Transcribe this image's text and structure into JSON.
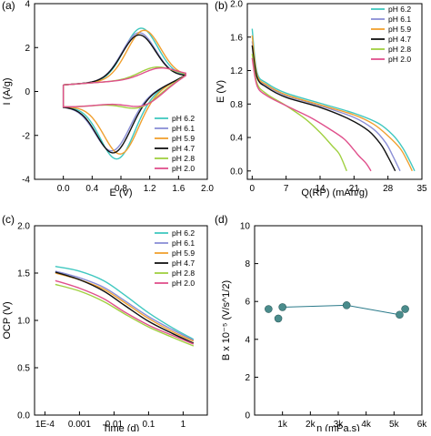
{
  "chart_data": [
    {
      "panel": "(a)",
      "type": "line",
      "xlabel": "E (V)",
      "ylabel": "I (A/g)",
      "xlim": [
        -0.4,
        2.0
      ],
      "ylim": [
        -4,
        4
      ],
      "xticks": [
        "0.0",
        "0.4",
        "0.8",
        "1.2",
        "1.6",
        "2.0"
      ],
      "yticks": [
        "-4",
        "-2",
        "0",
        "2",
        "4"
      ],
      "legend_position": "bottom-right",
      "series": [
        {
          "name": "pH 6.2",
          "color": "#40c8c0",
          "peak_ox": [
            1.08,
            2.55
          ],
          "peak_red": [
            0.75,
            -2.75
          ]
        },
        {
          "name": "pH 6.1",
          "color": "#8a8ed6",
          "peak_ox": [
            1.05,
            2.35
          ],
          "peak_red": [
            0.68,
            -2.35
          ]
        },
        {
          "name": "pH 5.9",
          "color": "#f0a030",
          "peak_ox": [
            1.12,
            2.45
          ],
          "peak_red": [
            0.8,
            -2.55
          ]
        },
        {
          "name": "pH 4.7",
          "color": "#111111",
          "peak_ox": [
            1.05,
            2.25
          ],
          "peak_red": [
            0.7,
            -2.45
          ]
        },
        {
          "name": "pH 2.8",
          "color": "#a0d040",
          "peak_ox": [
            1.3,
            0.75
          ],
          "peak_red": [
            1.05,
            -0.6
          ]
        },
        {
          "name": "pH 2.0",
          "color": "#e0508c",
          "peak_ox": [
            1.35,
            0.7
          ],
          "peak_red": [
            1.1,
            -0.55
          ]
        }
      ]
    },
    {
      "panel": "(b)",
      "type": "line",
      "xlabel": "Q(RP) (mAh/g)",
      "ylabel": "E (V)",
      "xlim": [
        -1,
        35
      ],
      "ylim": [
        -0.1,
        2.0
      ],
      "xticks": [
        "0",
        "7",
        "14",
        "21",
        "28",
        "35"
      ],
      "yticks": [
        "0.0",
        "0.4",
        "0.8",
        "1.2",
        "1.6",
        "2.0"
      ],
      "legend_position": "top-right",
      "series": [
        {
          "name": "pH 6.2",
          "color": "#40c8c0",
          "capacity": 33.5,
          "x": [
            0,
            1,
            3,
            7,
            14,
            21,
            26,
            29,
            31,
            32.5,
            33.5
          ],
          "y": [
            1.7,
            1.18,
            1.05,
            0.93,
            0.81,
            0.69,
            0.57,
            0.43,
            0.28,
            0.12,
            0.0
          ]
        },
        {
          "name": "pH 6.1",
          "color": "#8a8ed6",
          "capacity": 30.5,
          "x": [
            0,
            1,
            3,
            7,
            14,
            21,
            25,
            27.5,
            29,
            30.5
          ],
          "y": [
            1.55,
            1.14,
            1.02,
            0.9,
            0.78,
            0.64,
            0.5,
            0.34,
            0.18,
            0.0
          ]
        },
        {
          "name": "pH 5.9",
          "color": "#f0a030",
          "capacity": 33.0,
          "x": [
            0,
            1,
            3,
            7,
            14,
            21,
            25,
            28,
            30.5,
            32,
            33
          ],
          "y": [
            1.62,
            1.15,
            1.03,
            0.91,
            0.79,
            0.67,
            0.56,
            0.42,
            0.27,
            0.12,
            0.0
          ]
        },
        {
          "name": "pH 4.7",
          "color": "#111111",
          "capacity": 29.5,
          "x": [
            0,
            1,
            3,
            7,
            14,
            20,
            24,
            26.5,
            28,
            29.5
          ],
          "y": [
            1.5,
            1.12,
            1.0,
            0.88,
            0.76,
            0.62,
            0.48,
            0.32,
            0.17,
            0.0
          ]
        },
        {
          "name": "pH 2.8",
          "color": "#a0d040",
          "capacity": 19.5,
          "x": [
            0,
            1,
            3,
            7,
            11,
            14,
            16.5,
            18,
            19.5
          ],
          "y": [
            1.4,
            1.05,
            0.92,
            0.78,
            0.62,
            0.46,
            0.3,
            0.2,
            0.0
          ]
        },
        {
          "name": "pH 2.0",
          "color": "#e0508c",
          "capacity": 24.5,
          "x": [
            0,
            1,
            3,
            7,
            12,
            16,
            19,
            21,
            22,
            23.5,
            24.5
          ],
          "y": [
            1.35,
            1.02,
            0.9,
            0.78,
            0.64,
            0.5,
            0.38,
            0.25,
            0.18,
            0.09,
            0.0
          ]
        }
      ]
    },
    {
      "panel": "(c)",
      "type": "line",
      "xlabel": "Time (d)",
      "ylabel": "OCP (V)",
      "xscale": "log",
      "xlim_log10": [
        -4.3,
        0.7
      ],
      "ylim": [
        0.0,
        2.0
      ],
      "xticks": [
        "1E-4",
        "0.001",
        "0.01",
        "0.1",
        "1"
      ],
      "xtick_values": [
        0.0001,
        0.001,
        0.01,
        0.1,
        1
      ],
      "yticks": [
        "0.0",
        "0.5",
        "1.0",
        "1.5",
        "2.0"
      ],
      "legend_position": "top-right",
      "series": [
        {
          "name": "pH 6.2",
          "color": "#40c8c0",
          "x": [
            0.0002,
            0.001,
            0.005,
            0.02,
            0.1,
            0.5,
            2
          ],
          "y": [
            1.57,
            1.52,
            1.42,
            1.27,
            1.08,
            0.92,
            0.8
          ]
        },
        {
          "name": "pH 6.1",
          "color": "#8a8ed6",
          "x": [
            0.0002,
            0.001,
            0.005,
            0.02,
            0.1,
            0.5,
            2
          ],
          "y": [
            1.52,
            1.45,
            1.35,
            1.21,
            1.04,
            0.9,
            0.79
          ]
        },
        {
          "name": "pH 5.9",
          "color": "#f0a030",
          "x": [
            0.0002,
            0.001,
            0.005,
            0.02,
            0.1,
            0.5,
            2
          ],
          "y": [
            1.5,
            1.43,
            1.33,
            1.19,
            1.02,
            0.88,
            0.78
          ]
        },
        {
          "name": "pH 4.7",
          "color": "#111111",
          "x": [
            0.0002,
            0.001,
            0.005,
            0.02,
            0.1,
            0.5,
            2
          ],
          "y": [
            1.51,
            1.43,
            1.31,
            1.16,
            0.99,
            0.86,
            0.76
          ]
        },
        {
          "name": "pH 2.8",
          "color": "#a0d040",
          "x": [
            0.0002,
            0.001,
            0.005,
            0.02,
            0.1,
            0.5,
            2
          ],
          "y": [
            1.38,
            1.31,
            1.2,
            1.07,
            0.93,
            0.82,
            0.73
          ]
        },
        {
          "name": "pH 2.0",
          "color": "#e0508c",
          "x": [
            0.0002,
            0.001,
            0.005,
            0.02,
            0.1,
            0.5,
            2
          ],
          "y": [
            1.42,
            1.34,
            1.23,
            1.09,
            0.95,
            0.84,
            0.75
          ]
        }
      ]
    },
    {
      "panel": "(d)",
      "type": "scatter",
      "xlabel": "η (mPa.s)",
      "ylabel": "B x 10⁻⁵ (V/s^1/2)",
      "xlim": [
        0,
        6000
      ],
      "ylim": [
        0,
        10
      ],
      "xticks": [
        "1k",
        "2k",
        "3k",
        "4k",
        "5k",
        "6k"
      ],
      "xtick_values": [
        1000,
        2000,
        3000,
        4000,
        5000,
        6000
      ],
      "yticks": [
        "0",
        "2",
        "4",
        "6",
        "8",
        "10"
      ],
      "marker_color": "#4a8c8c",
      "line_color": "#2a7a8a",
      "x": [
        500,
        850,
        1000,
        3300,
        5200,
        5400
      ],
      "y": [
        5.6,
        5.1,
        5.7,
        5.8,
        5.3,
        5.6
      ]
    }
  ]
}
